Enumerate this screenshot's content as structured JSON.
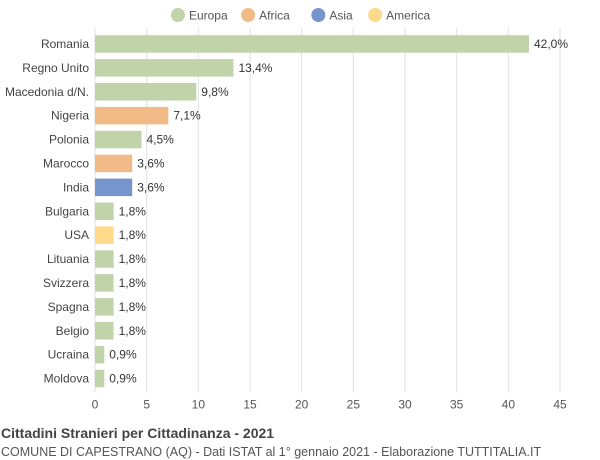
{
  "chart_data": {
    "type": "bar",
    "orientation": "horizontal",
    "title": "Cittadini Stranieri per Cittadinanza - 2021",
    "subtitle": "COMUNE DI CAPESTRANO (AQ) - Dati ISTAT al 1° gennaio 2021 - Elaborazione TUTTITALIA.IT",
    "xlim": [
      0,
      45
    ],
    "xticks": [
      0,
      5,
      10,
      15,
      20,
      25,
      30,
      35,
      40,
      45
    ],
    "grid": true,
    "legend_position": "top-center",
    "legend": [
      {
        "name": "Europa",
        "color": "#c0d3a9"
      },
      {
        "name": "Africa",
        "color": "#f0bb86"
      },
      {
        "name": "Asia",
        "color": "#7595cc"
      },
      {
        "name": "America",
        "color": "#fdd98c"
      }
    ],
    "categories": [
      "Romania",
      "Regno Unito",
      "Macedonia d/N.",
      "Nigeria",
      "Polonia",
      "Marocco",
      "India",
      "Bulgaria",
      "USA",
      "Lituania",
      "Svizzera",
      "Spagna",
      "Belgio",
      "Ucraina",
      "Moldova"
    ],
    "values": [
      42.0,
      13.4,
      9.8,
      7.1,
      4.5,
      3.6,
      3.6,
      1.8,
      1.8,
      1.8,
      1.8,
      1.8,
      1.8,
      0.9,
      0.9
    ],
    "value_labels": [
      "42,0%",
      "13,4%",
      "9,8%",
      "7,1%",
      "4,5%",
      "3,6%",
      "3,6%",
      "1,8%",
      "1,8%",
      "1,8%",
      "1,8%",
      "1,8%",
      "1,8%",
      "0,9%",
      "0,9%"
    ],
    "groups": [
      "Europa",
      "Europa",
      "Europa",
      "Africa",
      "Europa",
      "Africa",
      "Asia",
      "Europa",
      "America",
      "Europa",
      "Europa",
      "Europa",
      "Europa",
      "Europa",
      "Europa"
    ]
  }
}
